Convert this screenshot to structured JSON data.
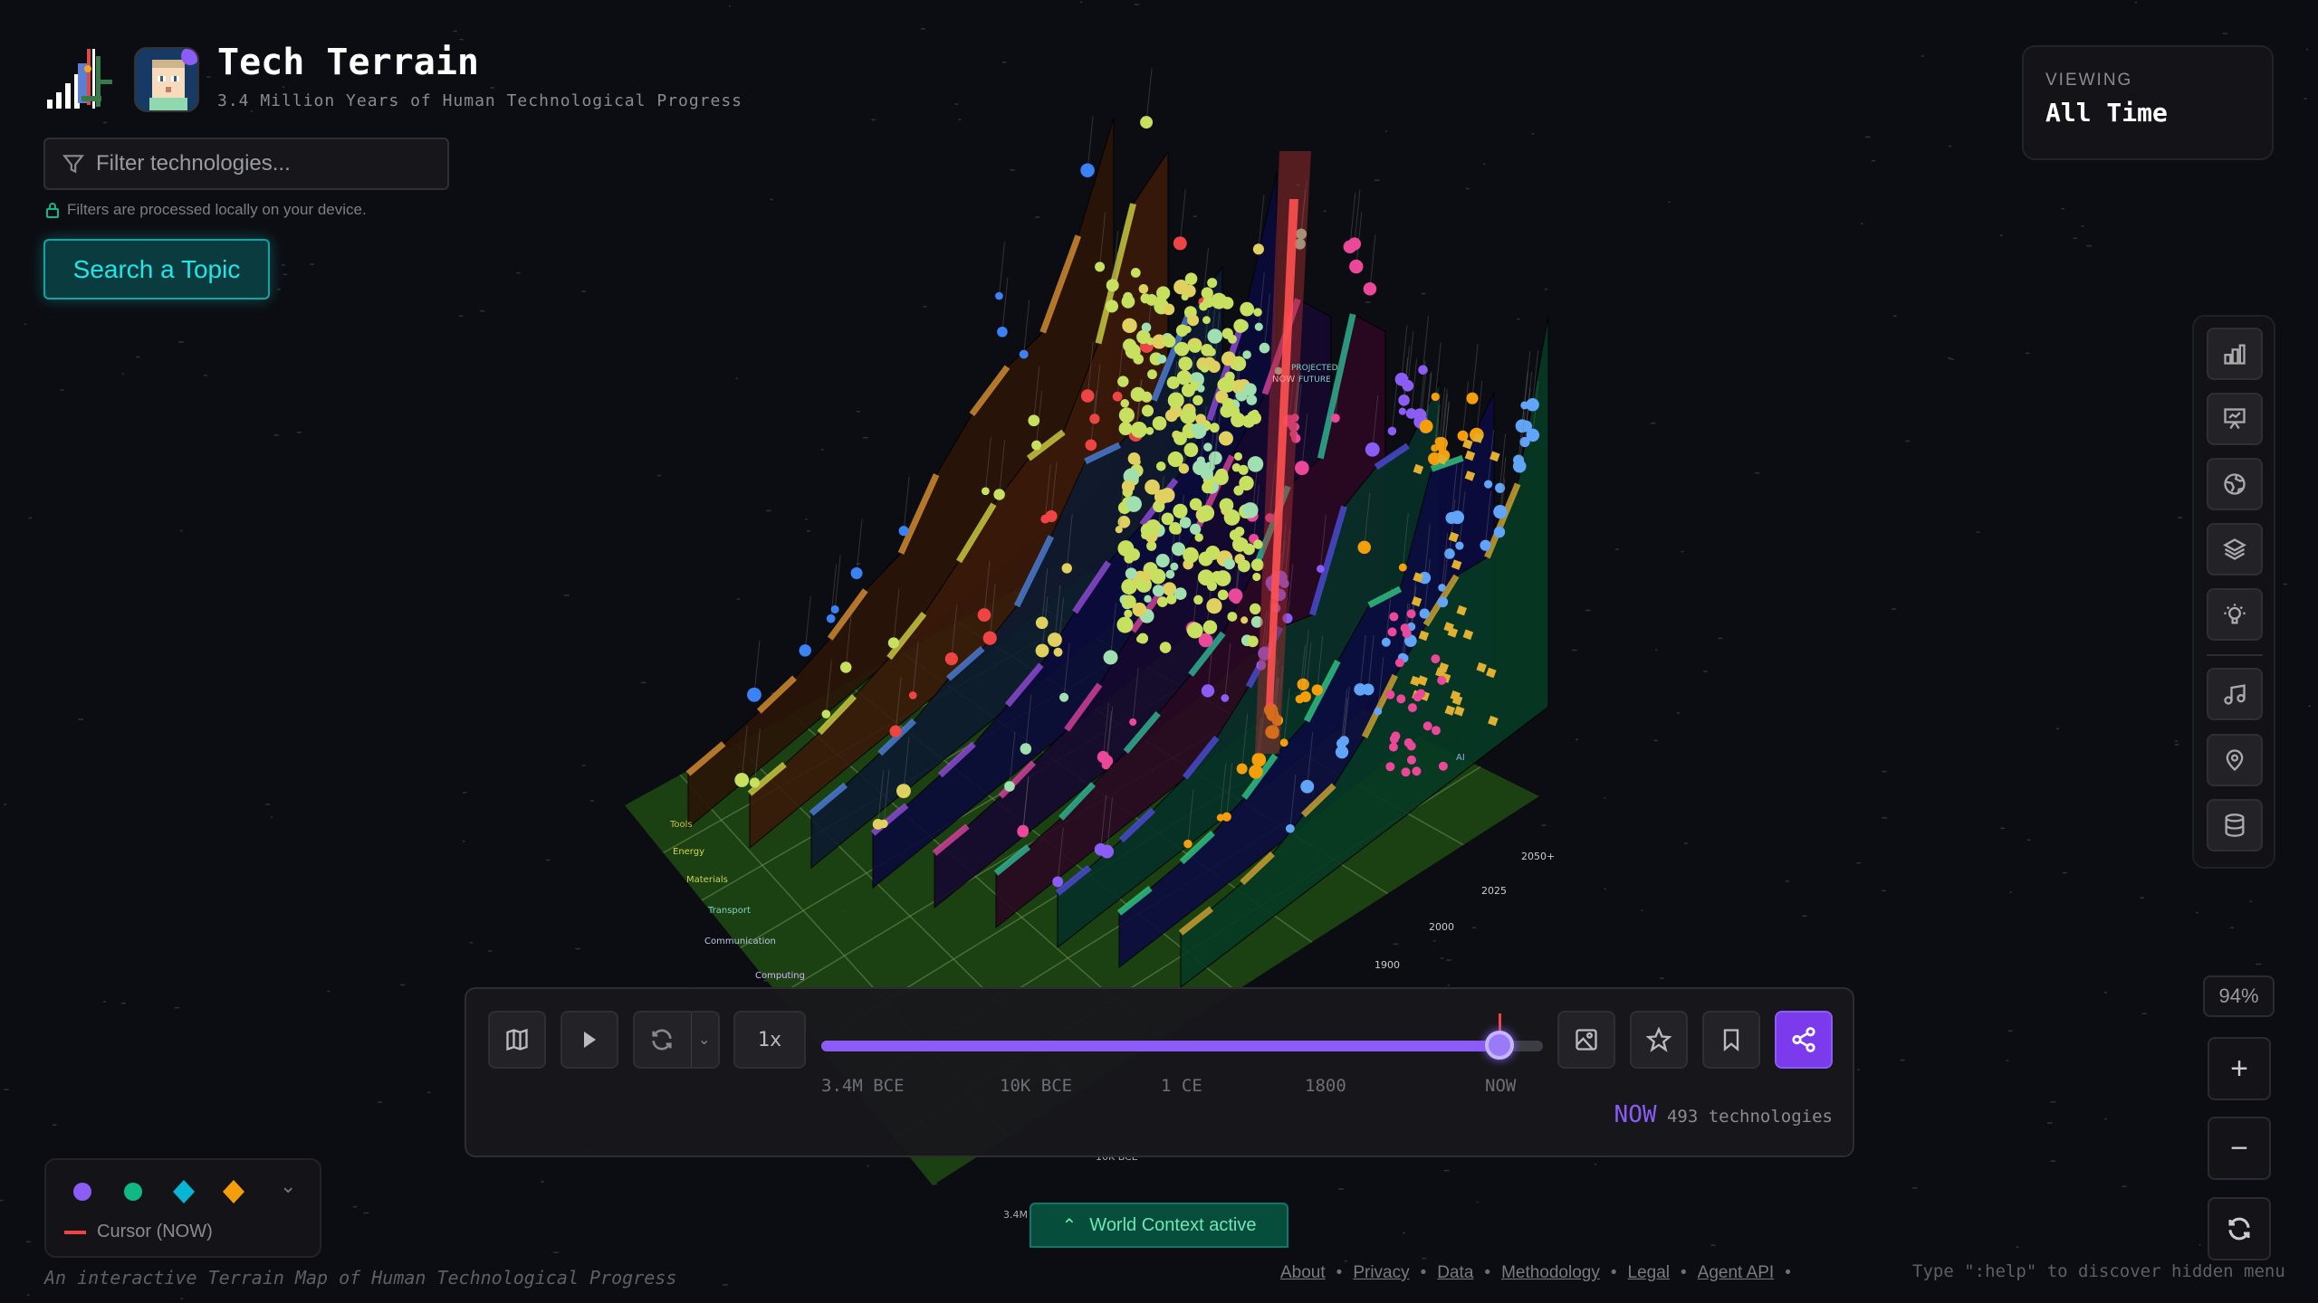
{
  "app": {
    "title": "Tech Terrain",
    "subtitle": "3.4 Million Years of Human Technological Progress"
  },
  "filter": {
    "placeholder": "Filter technologies...",
    "value": "",
    "hint": "Filters are processed locally on your device."
  },
  "search_button": "Search a Topic",
  "viewing": {
    "label": "VIEWING",
    "value": "All Time"
  },
  "sidebar": {
    "icons": [
      "bar-chart-icon",
      "presentation-icon",
      "globe-icon",
      "layers-icon",
      "lightbulb-icon",
      "music-icon",
      "location-pin-icon",
      "database-icon"
    ]
  },
  "zoom": {
    "percent": "94%",
    "zoom_in": "+",
    "zoom_out": "−"
  },
  "terrain": {
    "categories": [
      {
        "name": "Tools",
        "color": "#d4b84a"
      },
      {
        "name": "Energy",
        "color": "#d9d24a"
      },
      {
        "name": "Materials",
        "color": "#c8d45a"
      },
      {
        "name": "Transport",
        "color": "#7dd3c0"
      },
      {
        "name": "Communication",
        "color": "#b9c8e8"
      },
      {
        "name": "Computing",
        "color": "#d8b4fe"
      }
    ],
    "year_labels": [
      "2050+",
      "2025",
      "2000",
      "1900"
    ],
    "time_labels": [
      "10K BCE",
      "3.4M"
    ],
    "now_label": "NOW",
    "projected_label": [
      "PROJECTED",
      "FUTURE"
    ],
    "ai_label": "AI"
  },
  "timeline": {
    "speed": "1x",
    "progress_percent": 94,
    "ticks": [
      "3.4M BCE",
      "10K BCE",
      "1 CE",
      "1800",
      "NOW"
    ],
    "status_now": "NOW",
    "status_count": "493 technologies"
  },
  "legend": {
    "shapes": [
      {
        "shape": "circle",
        "color": "#8b5cf6"
      },
      {
        "shape": "circle",
        "color": "#10b981"
      },
      {
        "shape": "diamond",
        "color": "#06b6d4"
      },
      {
        "shape": "diamond",
        "color": "#f59e0b"
      }
    ],
    "cursor_label": "Cursor (NOW)",
    "cursor_color": "#ef4444"
  },
  "world_context": "World Context active",
  "footer": {
    "tagline": "An interactive Terrain Map of Human Technological Progress",
    "links": [
      "About",
      "Privacy",
      "Data",
      "Methodology",
      "Legal",
      "Agent API"
    ],
    "help": "Type \":help\" to discover hidden menu"
  }
}
